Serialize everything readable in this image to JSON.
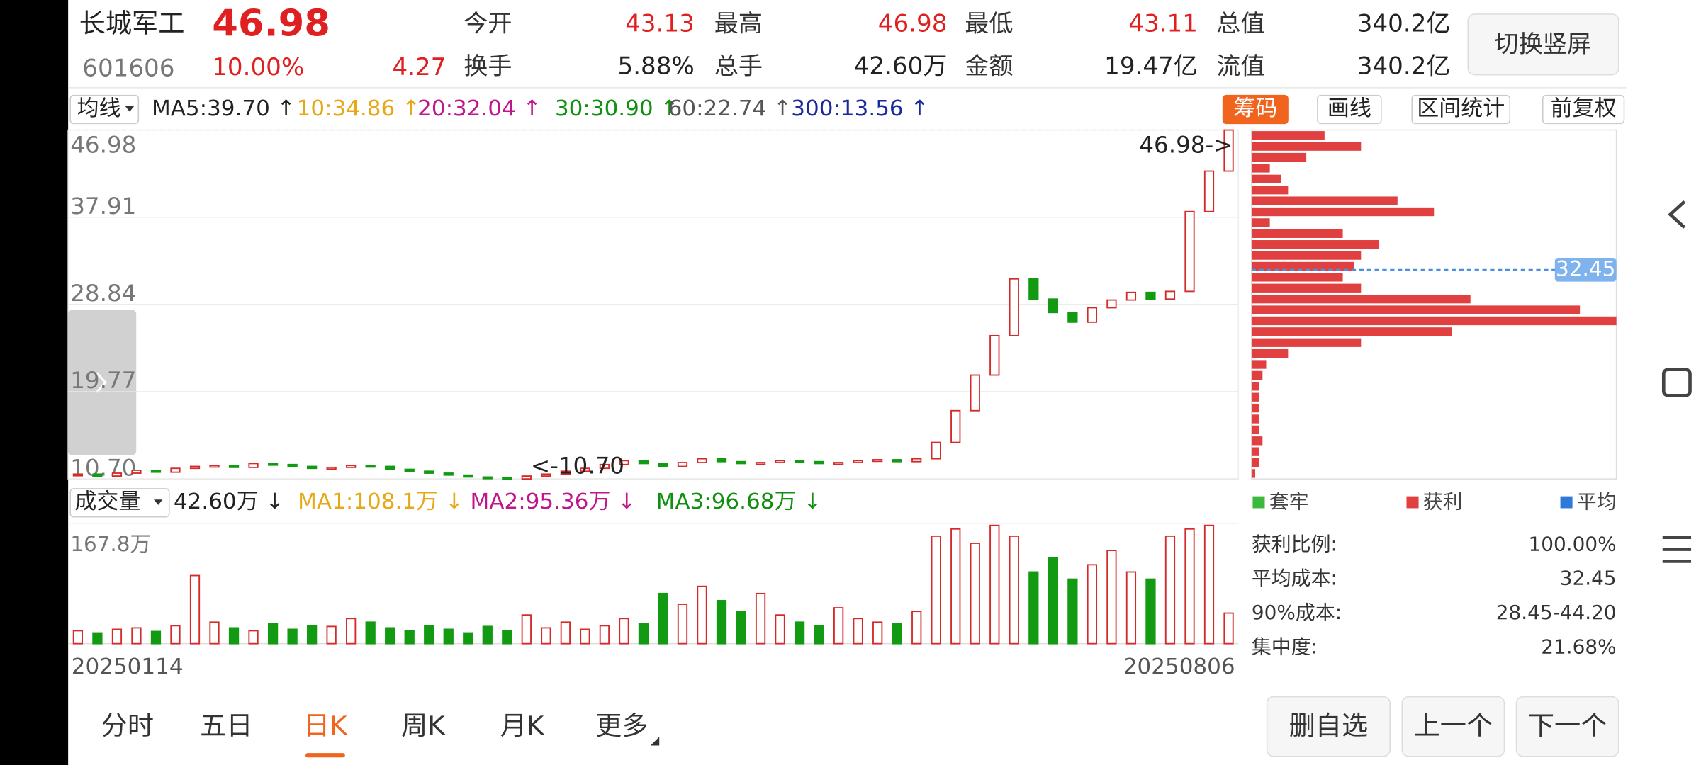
{
  "header": {
    "name": "长城军工",
    "price": "46.98",
    "code": "601606",
    "change_pct": "10.00%",
    "change": "4.27",
    "stats": [
      {
        "label": "今开",
        "value": "43.13",
        "color": "#e02020"
      },
      {
        "label": "最高",
        "value": "46.98",
        "color": "#e02020"
      },
      {
        "label": "最低",
        "value": "43.11",
        "color": "#e02020"
      },
      {
        "label": "总值",
        "value": "340.2亿",
        "color": "#222222"
      },
      {
        "label": "换手",
        "value": "5.88%",
        "color": "#222222"
      },
      {
        "label": "总手",
        "value": "42.60万",
        "color": "#222222"
      },
      {
        "label": "金额",
        "value": "19.47亿",
        "color": "#222222"
      },
      {
        "label": "流值",
        "value": "340.2亿",
        "color": "#222222"
      }
    ],
    "button": "切换竖屏"
  },
  "ma_bar": {
    "label": "均线",
    "items": [
      {
        "text": "MA5:39.70 ↑",
        "color": "#222222"
      },
      {
        "text": "10:34.86 ↑",
        "color": "#e6a817"
      },
      {
        "text": "20:32.04 ↑",
        "color": "#c0168c"
      },
      {
        "text": "30:30.90 ↑",
        "color": "#109010"
      },
      {
        "text": "60:22.74 ↑",
        "color": "#555555"
      },
      {
        "text": "300:13.56 ↑",
        "color": "#1a2a9a"
      }
    ]
  },
  "tools": [
    "筹码",
    "画线",
    "区间统计",
    "前复权"
  ],
  "price_chart": {
    "ylim": [
      10.7,
      46.98
    ],
    "yticks": [
      46.98,
      37.91,
      28.84,
      19.77,
      {
        "value": 10.7,
        "label": "10.70"
      }
    ],
    "max_label": "46.98->",
    "min_label": "<-10.70",
    "up_color": "#d42a2a",
    "down_color": "#129a12",
    "closes": [
      11.2,
      11.0,
      11.3,
      11.6,
      11.4,
      11.8,
      12.0,
      12.1,
      11.9,
      12.3,
      12.2,
      12.0,
      11.8,
      11.9,
      12.1,
      12.0,
      11.7,
      11.5,
      11.3,
      11.1,
      10.9,
      10.8,
      10.7,
      11.0,
      11.2,
      11.5,
      11.8,
      12.2,
      12.6,
      12.3,
      12.0,
      12.4,
      12.8,
      12.5,
      12.3,
      12.4,
      12.6,
      12.5,
      12.3,
      12.4,
      12.6,
      12.7,
      12.5,
      12.8,
      14.5,
      17.8,
      21.5,
      25.6,
      31.5,
      29.4,
      28.0,
      27.0,
      28.5,
      29.3,
      30.1,
      29.4,
      30.2,
      38.5,
      42.71,
      46.98
    ]
  },
  "volume_chart": {
    "label": "成交量",
    "items": [
      {
        "text": "42.60万 ↓",
        "color": "#222222"
      },
      {
        "text": "MA1:108.1万 ↓",
        "color": "#e6a817"
      },
      {
        "text": "MA2:95.36万 ↓",
        "color": "#c0168c"
      },
      {
        "text": "MA3:96.68万 ↓",
        "color": "#109010"
      }
    ],
    "vlim": [
      0,
      167.8
    ],
    "vticks": [
      {
        "value": 167.8,
        "label": "167.8万"
      }
    ],
    "volumes": [
      18,
      15,
      20,
      22,
      17,
      25,
      95,
      30,
      22,
      18,
      28,
      20,
      25,
      24,
      35,
      30,
      22,
      18,
      25,
      20,
      15,
      24,
      18,
      40,
      22,
      30,
      20,
      25,
      35,
      28,
      70,
      55,
      80,
      60,
      45,
      70,
      40,
      30,
      25,
      50,
      35,
      30,
      28,
      45,
      150,
      160,
      140,
      165,
      150,
      100,
      120,
      90,
      110,
      130,
      100,
      90,
      150,
      160,
      165,
      42.6
    ],
    "dates": [
      "20250114",
      "20250806"
    ]
  },
  "chips": {
    "color": "#e04040",
    "avg_color": "#4a8fe0",
    "avg_cost": 32.45,
    "lengths": [
      20,
      30,
      15,
      5,
      8,
      10,
      40,
      50,
      5,
      25,
      35,
      30,
      28,
      25,
      30,
      60,
      90,
      100,
      55,
      30,
      10,
      4,
      3,
      2,
      2,
      2,
      2,
      2,
      3,
      2,
      2,
      1
    ],
    "legend": [
      {
        "name": "套牢",
        "color": "#3cb83c"
      },
      {
        "name": "获利",
        "color": "#e04040"
      },
      {
        "name": "平均",
        "color": "#2f7ad8"
      }
    ],
    "stats": [
      {
        "label": "获利比例:",
        "value": "100.00%"
      },
      {
        "label": "平均成本:",
        "value": "32.45"
      },
      {
        "label": "90%成本:",
        "value": "28.45-44.20"
      },
      {
        "label": "集中度:",
        "value": "21.68%"
      }
    ]
  },
  "tabs": [
    "分时",
    "五日",
    "日K",
    "周K",
    "月K",
    "更多"
  ],
  "active_tab": 2,
  "buttons": [
    "删自选",
    "上一个",
    "下一个"
  ]
}
